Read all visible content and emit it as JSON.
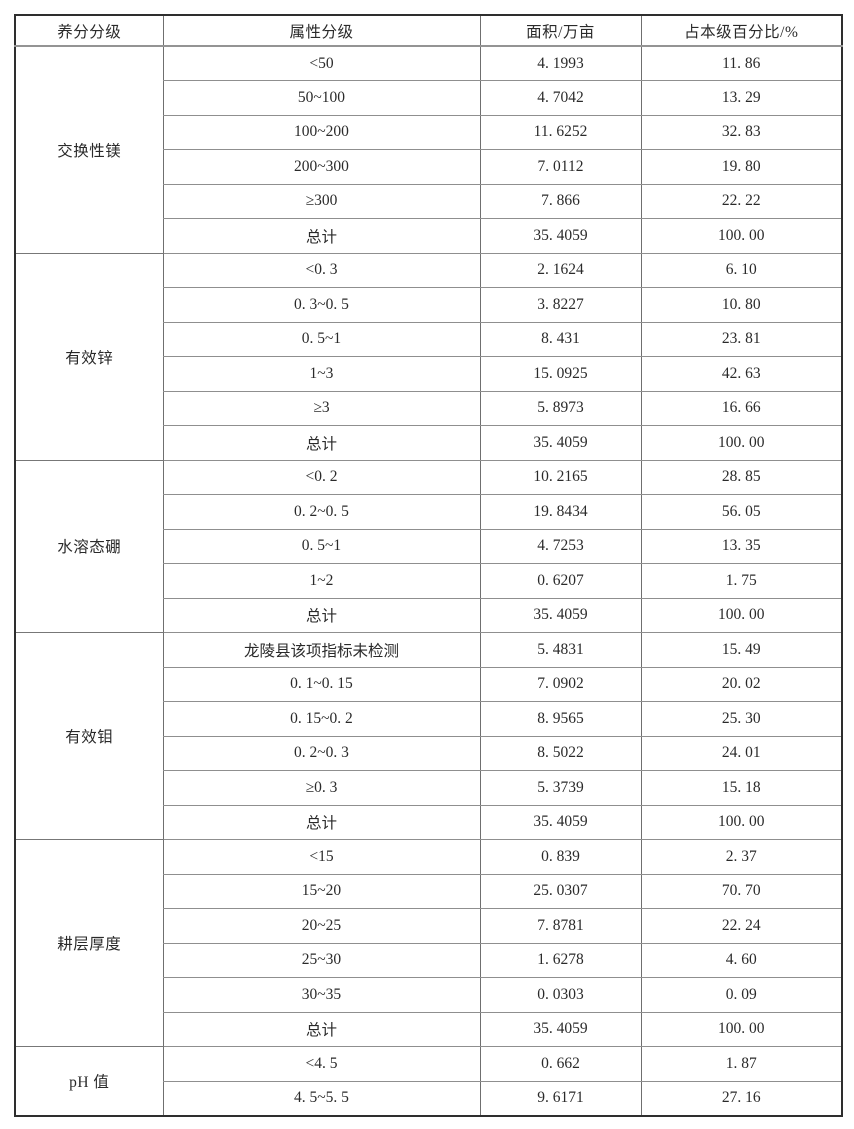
{
  "table": {
    "headers": [
      "养分分级",
      "属性分级",
      "面积/万亩",
      "占本级百分比/%"
    ],
    "groups": [
      {
        "name": "交换性镁",
        "rows": [
          [
            "<50",
            "4. 1993",
            "11. 86"
          ],
          [
            "50~100",
            "4. 7042",
            "13. 29"
          ],
          [
            "100~200",
            "11. 6252",
            "32. 83"
          ],
          [
            "200~300",
            "7. 0112",
            "19. 80"
          ],
          [
            "≥300",
            "7. 866",
            "22. 22"
          ],
          [
            "总计",
            "35. 4059",
            "100. 00"
          ]
        ]
      },
      {
        "name": "有效锌",
        "rows": [
          [
            "<0. 3",
            "2. 1624",
            "6. 10"
          ],
          [
            "0. 3~0. 5",
            "3. 8227",
            "10. 80"
          ],
          [
            "0. 5~1",
            "8. 431",
            "23. 81"
          ],
          [
            "1~3",
            "15. 0925",
            "42. 63"
          ],
          [
            "≥3",
            "5. 8973",
            "16. 66"
          ],
          [
            "总计",
            "35. 4059",
            "100. 00"
          ]
        ]
      },
      {
        "name": "水溶态硼",
        "rows": [
          [
            "<0. 2",
            "10. 2165",
            "28. 85"
          ],
          [
            "0. 2~0. 5",
            "19. 8434",
            "56. 05"
          ],
          [
            "0. 5~1",
            "4. 7253",
            "13. 35"
          ],
          [
            "1~2",
            "0. 6207",
            "1. 75"
          ],
          [
            "总计",
            "35. 4059",
            "100. 00"
          ]
        ]
      },
      {
        "name": "有效钼",
        "rows": [
          [
            "龙陵县该项指标未检测",
            "5. 4831",
            "15. 49"
          ],
          [
            "0. 1~0. 15",
            "7. 0902",
            "20. 02"
          ],
          [
            "0. 15~0. 2",
            "8. 9565",
            "25. 30"
          ],
          [
            "0. 2~0. 3",
            "8. 5022",
            "24. 01"
          ],
          [
            "≥0. 3",
            "5. 3739",
            "15. 18"
          ],
          [
            "总计",
            "35. 4059",
            "100. 00"
          ]
        ]
      },
      {
        "name": "耕层厚度",
        "rows": [
          [
            "<15",
            "0. 839",
            "2. 37"
          ],
          [
            "15~20",
            "25. 0307",
            "70. 70"
          ],
          [
            "20~25",
            "7. 8781",
            "22. 24"
          ],
          [
            "25~30",
            "1. 6278",
            "4. 60"
          ],
          [
            "30~35",
            "0. 0303",
            "0. 09"
          ],
          [
            "总计",
            "35. 4059",
            "100. 00"
          ]
        ]
      },
      {
        "name": "pH 值",
        "rows": [
          [
            "<4. 5",
            "0. 662",
            "1. 87"
          ],
          [
            "4. 5~5. 5",
            "9. 6171",
            "27. 16"
          ]
        ]
      }
    ]
  }
}
